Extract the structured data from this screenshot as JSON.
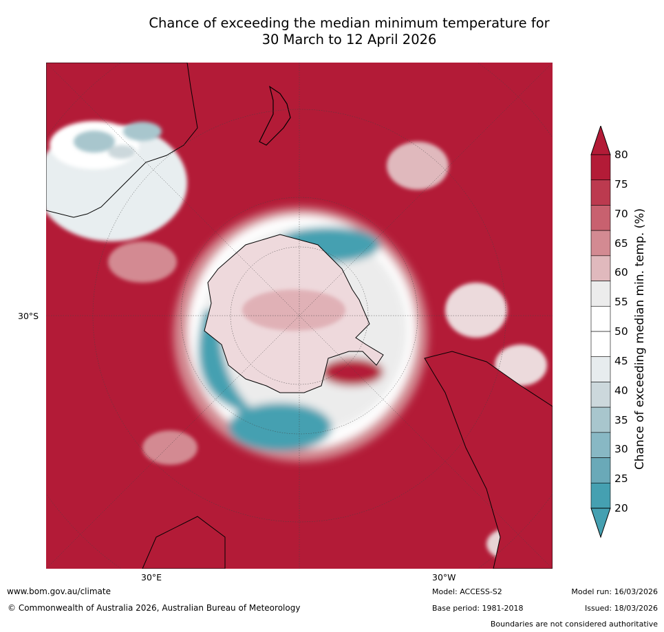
{
  "title_line1": "Chance of exceeding the median minimum temperature for",
  "title_line2": "30 March to 12 April 2026",
  "map": {
    "projection": "south-polar stereographic",
    "lat_label": "30°S",
    "lon_labels": {
      "east": "30°E",
      "west": "30°W"
    },
    "legend": {
      "above_median": "red",
      "near_median": "white",
      "below_median": "teal"
    }
  },
  "colorbar": {
    "ticks": [
      "80",
      "75",
      "70",
      "65",
      "60",
      "55",
      "50",
      "45",
      "40",
      "35",
      "30",
      "25",
      "20"
    ],
    "colors": [
      "#b31b37",
      "#bc3a4f",
      "#c8616f",
      "#d38a92",
      "#e0b9bd",
      "#ececec",
      "#ffffff",
      "#ffffff",
      "#e7ecee",
      "#ccd8dc",
      "#a8c6cd",
      "#88b8c4",
      "#6aa9b8",
      "#45a0b1"
    ],
    "over_color": "#b31b37",
    "under_color": "#45a0b1",
    "label": "Chance of exceeding median min. temp. (%)"
  },
  "footer": {
    "website": "www.bom.gov.au/climate",
    "copyright": "© Commonwealth of Australia 2026, Australian Bureau of Meteorology",
    "model": "Model: ACCESS-S2",
    "base_period": "Base period: 1981-2018",
    "model_run": "Model run: 16/03/2026",
    "issued": "Issued: 18/03/2026",
    "disclaimer": "Boundaries are not considered authoritative"
  }
}
